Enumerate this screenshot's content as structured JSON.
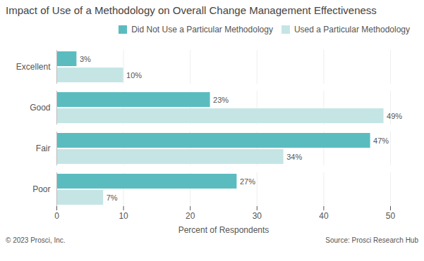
{
  "chart_data": {
    "type": "bar",
    "orientation": "horizontal",
    "title": "Impact of Use of a Methodology on Overall Change Management Effectiveness",
    "categories": [
      "Poor",
      "Fair",
      "Good",
      "Excellent"
    ],
    "series": [
      {
        "name": "Did Not Use a Particular Methodology",
        "color": "#5bbcbf",
        "values": [
          27,
          47,
          23,
          3
        ],
        "value_labels": [
          "27%",
          "47%",
          "23%",
          "3%"
        ]
      },
      {
        "name": "Used a Particular Methodology",
        "color": "#c5e5e5",
        "values": [
          7,
          34,
          49,
          10
        ],
        "value_labels": [
          "7%",
          "34%",
          "49%",
          "10%"
        ]
      }
    ],
    "xlabel": "Percent of Respondents",
    "xlim": [
      0,
      50
    ],
    "xticks": [
      0,
      10,
      20,
      30,
      40,
      50
    ],
    "grid": true,
    "legend": "upper right",
    "data_labels": true,
    "annotations": [
      "© 2023 Prosci, Inc.",
      "Source: Prosci Research Hub"
    ]
  }
}
